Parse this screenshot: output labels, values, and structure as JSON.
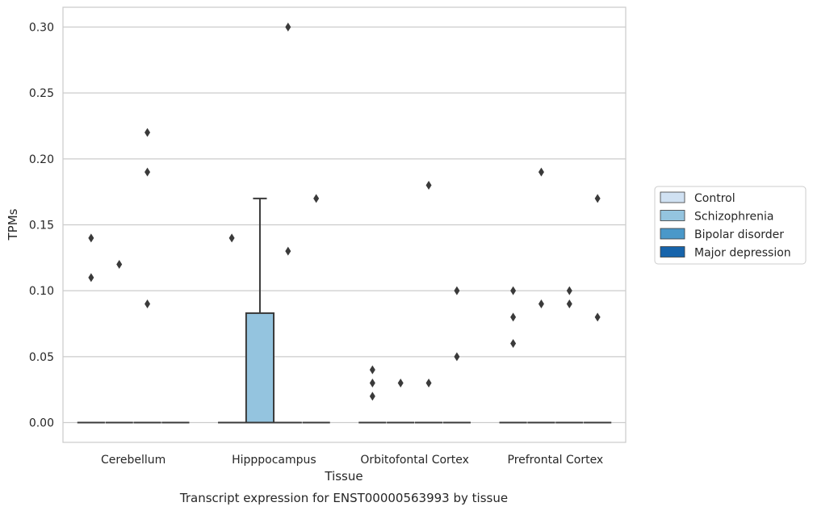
{
  "chart_data": {
    "type": "box",
    "xlabel": "Tissue",
    "ylabel": "TPMs",
    "caption": "Transcript expression for ENST00000563993 by tissue",
    "ylim": [
      -0.015,
      0.315
    ],
    "yticks": [
      0.0,
      0.05,
      0.1,
      0.15,
      0.2,
      0.25,
      0.3
    ],
    "ytick_labels": [
      "0.00",
      "0.05",
      "0.10",
      "0.15",
      "0.20",
      "0.25",
      "0.30"
    ],
    "grid": "horizontal",
    "legend_position": "right",
    "categories": [
      "Cerebellum",
      "Hipppocampus",
      "Orbitofontal Cortex",
      "Prefrontal Cortex"
    ],
    "series": [
      {
        "name": "Control",
        "color": "#d0e1f2"
      },
      {
        "name": "Schizophrenia",
        "color": "#94c4df"
      },
      {
        "name": "Bipolar disorder",
        "color": "#4a98c9"
      },
      {
        "name": "Major depression",
        "color": "#1764ab"
      }
    ],
    "boxes": [
      {
        "category": 0,
        "series": 0,
        "q1": 0,
        "median": 0,
        "q3": 0,
        "whisker_low": 0,
        "whisker_high": 0,
        "outliers": [
          0.14,
          0.11
        ]
      },
      {
        "category": 0,
        "series": 1,
        "q1": 0,
        "median": 0,
        "q3": 0,
        "whisker_low": 0,
        "whisker_high": 0,
        "outliers": [
          0.12
        ]
      },
      {
        "category": 0,
        "series": 2,
        "q1": 0,
        "median": 0,
        "q3": 0,
        "whisker_low": 0,
        "whisker_high": 0,
        "outliers": [
          0.22,
          0.19,
          0.09
        ]
      },
      {
        "category": 0,
        "series": 3,
        "q1": 0,
        "median": 0,
        "q3": 0,
        "whisker_low": 0,
        "whisker_high": 0,
        "outliers": []
      },
      {
        "category": 1,
        "series": 0,
        "q1": 0,
        "median": 0,
        "q3": 0,
        "whisker_low": 0,
        "whisker_high": 0,
        "outliers": [
          0.14
        ]
      },
      {
        "category": 1,
        "series": 1,
        "q1": 0,
        "median": 0,
        "q3": 0.083,
        "whisker_low": 0,
        "whisker_high": 0.17,
        "outliers": []
      },
      {
        "category": 1,
        "series": 2,
        "q1": 0,
        "median": 0,
        "q3": 0,
        "whisker_low": 0,
        "whisker_high": 0,
        "outliers": [
          0.3,
          0.13
        ]
      },
      {
        "category": 1,
        "series": 3,
        "q1": 0,
        "median": 0,
        "q3": 0,
        "whisker_low": 0,
        "whisker_high": 0,
        "outliers": [
          0.17
        ]
      },
      {
        "category": 2,
        "series": 0,
        "q1": 0,
        "median": 0,
        "q3": 0,
        "whisker_low": 0,
        "whisker_high": 0,
        "outliers": [
          0.04,
          0.03,
          0.02
        ]
      },
      {
        "category": 2,
        "series": 1,
        "q1": 0,
        "median": 0,
        "q3": 0,
        "whisker_low": 0,
        "whisker_high": 0,
        "outliers": [
          0.03
        ]
      },
      {
        "category": 2,
        "series": 2,
        "q1": 0,
        "median": 0,
        "q3": 0,
        "whisker_low": 0,
        "whisker_high": 0,
        "outliers": [
          0.18,
          0.03
        ]
      },
      {
        "category": 2,
        "series": 3,
        "q1": 0,
        "median": 0,
        "q3": 0,
        "whisker_low": 0,
        "whisker_high": 0,
        "outliers": [
          0.1,
          0.05
        ]
      },
      {
        "category": 3,
        "series": 0,
        "q1": 0,
        "median": 0,
        "q3": 0,
        "whisker_low": 0,
        "whisker_high": 0,
        "outliers": [
          0.1,
          0.08,
          0.06
        ]
      },
      {
        "category": 3,
        "series": 1,
        "q1": 0,
        "median": 0,
        "q3": 0,
        "whisker_low": 0,
        "whisker_high": 0,
        "outliers": [
          0.19,
          0.09
        ]
      },
      {
        "category": 3,
        "series": 2,
        "q1": 0,
        "median": 0,
        "q3": 0,
        "whisker_low": 0,
        "whisker_high": 0,
        "outliers": [
          0.1,
          0.09
        ]
      },
      {
        "category": 3,
        "series": 3,
        "q1": 0,
        "median": 0,
        "q3": 0,
        "whisker_low": 0,
        "whisker_high": 0,
        "outliers": [
          0.17,
          0.08
        ]
      }
    ]
  },
  "colors": {
    "grid": "#cccccc",
    "frame": "#cccccc",
    "box_edge": "#3a3a3a",
    "outlier": "#3a3a3a"
  }
}
